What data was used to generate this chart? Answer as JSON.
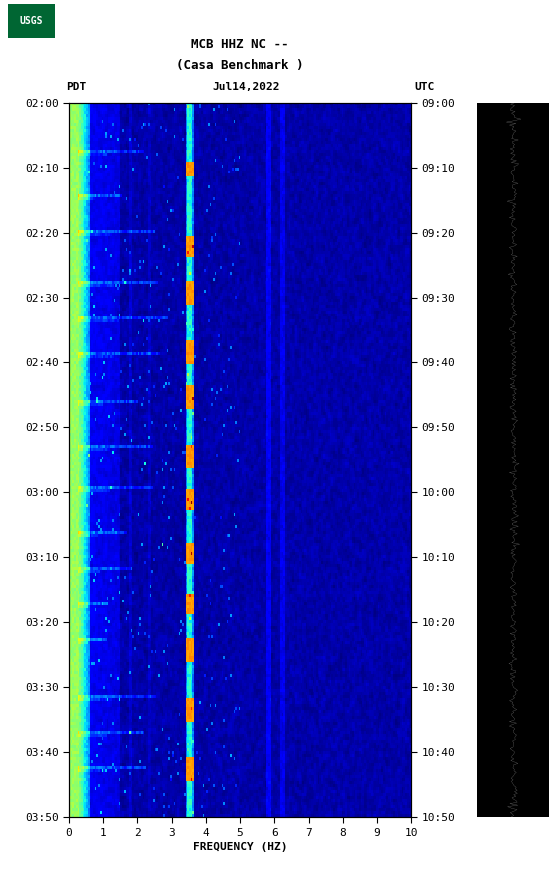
{
  "title_line1": "MCB HHZ NC --",
  "title_line2": "(Casa Benchmark )",
  "date_label": "Jul14,2022",
  "tz_left": "PDT",
  "tz_right": "UTC",
  "freq_label": "FREQUENCY (HZ)",
  "freq_min": 0,
  "freq_max": 10,
  "freq_ticks": [
    0,
    1,
    2,
    3,
    4,
    5,
    6,
    7,
    8,
    9,
    10
  ],
  "time_ticks_left": [
    "02:00",
    "02:10",
    "02:20",
    "02:30",
    "02:40",
    "02:50",
    "03:00",
    "03:10",
    "03:20",
    "03:30",
    "03:40",
    "03:50"
  ],
  "time_ticks_right": [
    "09:00",
    "09:10",
    "09:20",
    "09:30",
    "09:40",
    "09:50",
    "10:00",
    "10:10",
    "10:20",
    "10:30",
    "10:40",
    "10:50"
  ],
  "bg_color": "#ffffff",
  "fig_width": 5.52,
  "fig_height": 8.93,
  "colormap": "jet",
  "n_freq": 200,
  "n_time": 240,
  "random_seed": 42,
  "usgs_green": "#006633",
  "text_color": "#000000",
  "right_panel_color": "#000000",
  "logo_text": "USGS"
}
